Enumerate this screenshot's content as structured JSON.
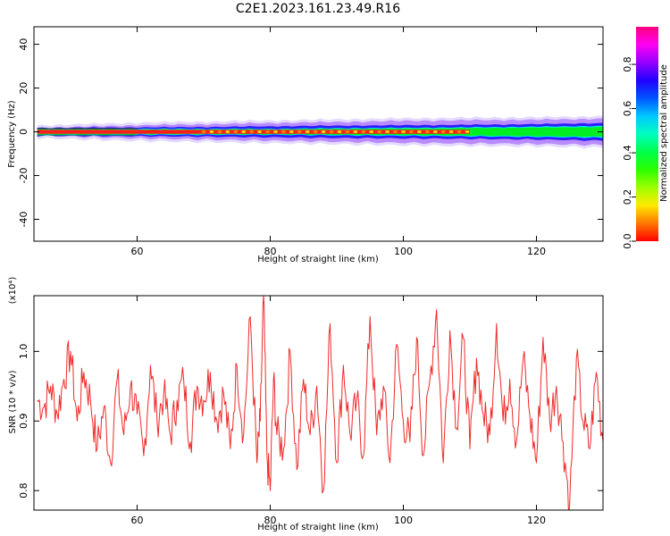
{
  "title": "C2E1.2023.161.23.49.R16",
  "colors": {
    "signal_line": "#ee2a2a",
    "core_red": "#ff1e1e",
    "core_yellow": "#ffe600",
    "halo_green": "#00ee22",
    "halo_cyan": "#00f0ff",
    "halo_blue": "#2a1dff",
    "halo_violet": "#b98bff",
    "halo_lavender": "#e4d9ff"
  },
  "chart_data": [
    {
      "type": "heatmap",
      "xlabel": "Height of straight line (km)",
      "ylabel": "Frequency (Hz)",
      "xlim": [
        44.5,
        130
      ],
      "ylim": [
        -50,
        48
      ],
      "x_ticks": [
        60,
        80,
        100,
        120
      ],
      "y_ticks": [
        40,
        20,
        0,
        -20,
        -40
      ],
      "y_tick_labels": [
        "40",
        "20",
        "0",
        "-20",
        "-40"
      ],
      "grid": false,
      "band": {
        "center_hz": 0,
        "x": [
          45,
          60,
          70,
          80,
          90,
          100,
          110,
          120,
          130
        ],
        "core_half_width_hz": [
          1.5,
          1.5,
          1.5,
          1.5,
          1.5,
          1.5,
          1.5,
          1.8,
          2.0
        ],
        "green_half_width_hz": [
          1.5,
          1.5,
          1.5,
          1.5,
          1.8,
          2.0,
          2.3,
          2.6,
          3.0
        ],
        "blue_half_width_hz": [
          1.8,
          2.0,
          2.2,
          2.5,
          2.8,
          3.0,
          3.2,
          3.5,
          4.0
        ],
        "violet_half_width_hz": [
          1.8,
          3.0,
          3.5,
          4.0,
          4.5,
          5.0,
          5.3,
          5.5,
          6.0
        ]
      },
      "colorbar": {
        "label": "Normalized spectral amplitude",
        "range": [
          0,
          0.97
        ],
        "ticks": [
          0.0,
          0.2,
          0.4,
          0.6,
          0.8
        ],
        "tick_labels": [
          "0.0",
          "0.2",
          "0.4",
          "0.6",
          "0.8"
        ],
        "scale": "hsv"
      }
    },
    {
      "type": "line",
      "xlabel": "Height of straight line (km)",
      "ylabel": "SNR (10 * v/v)",
      "multiplier": "(x10⁴)",
      "xlim": [
        44.5,
        130
      ],
      "ylim": [
        0.772,
        1.08
      ],
      "x_ticks": [
        60,
        80,
        100,
        120
      ],
      "y_ticks": [
        0.8,
        0.9,
        1.0
      ],
      "y_tick_labels": [
        "0.8",
        "0.9",
        "1.0"
      ],
      "grid": false,
      "series": [
        {
          "color": "#ee2a2a",
          "x": [
            45,
            46,
            47,
            48,
            49,
            50,
            51,
            52,
            53,
            54,
            55,
            56,
            57,
            58,
            59,
            60,
            61,
            62,
            63,
            64,
            65,
            66,
            67,
            68,
            69,
            70,
            71,
            72,
            73,
            74,
            75,
            76,
            77,
            78,
            78.5,
            79,
            79.5,
            80,
            80.5,
            81,
            82,
            83,
            84,
            85,
            86,
            87,
            88,
            89,
            90,
            91,
            92,
            93,
            94,
            95,
            96,
            97,
            98,
            99,
            100,
            101,
            102,
            103,
            104,
            105,
            106,
            107,
            108,
            109,
            110,
            111,
            112,
            113,
            114,
            115,
            116,
            117,
            118,
            119,
            120,
            121,
            122,
            123,
            124,
            125,
            126,
            127,
            128,
            129,
            130
          ],
          "y": [
            0.93,
            0.92,
            0.95,
            0.91,
            0.96,
            1.0,
            0.9,
            0.97,
            0.93,
            0.86,
            0.92,
            0.84,
            0.96,
            0.88,
            0.95,
            0.91,
            0.85,
            0.98,
            0.9,
            0.94,
            0.88,
            0.93,
            0.96,
            0.87,
            0.95,
            0.93,
            0.97,
            0.9,
            0.94,
            0.86,
            0.98,
            0.88,
            1.05,
            0.84,
            0.9,
            1.08,
            0.85,
            0.8,
            0.96,
            0.88,
            0.86,
            1.0,
            0.83,
            0.96,
            0.88,
            0.95,
            0.8,
            1.04,
            0.84,
            0.98,
            0.88,
            0.93,
            0.85,
            1.05,
            0.88,
            0.95,
            0.84,
            1.01,
            0.9,
            0.87,
            1.02,
            0.85,
            0.96,
            1.06,
            0.84,
            1.03,
            0.89,
            1.02,
            0.86,
            0.99,
            0.91,
            0.88,
            1.04,
            0.9,
            0.96,
            0.87,
            0.99,
            0.91,
            0.84,
            1.02,
            0.9,
            0.95,
            0.87,
            0.78,
            0.99,
            0.9,
            0.86,
            0.97,
            0.87
          ]
        }
      ]
    }
  ]
}
